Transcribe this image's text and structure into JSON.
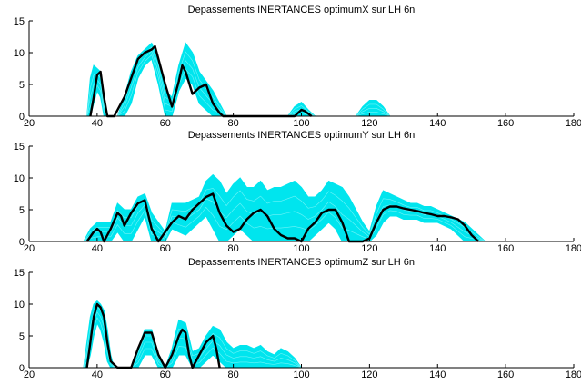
{
  "colors": {
    "band": "#00e5ee",
    "median": "#000000",
    "axis": "#000000",
    "background": "#ffffff"
  },
  "chart_data": [
    {
      "type": "line",
      "title": "Depassements INERTANCES optimumX sur LH 6n",
      "xlim": [
        20,
        180
      ],
      "ylim": [
        0,
        15
      ],
      "xticks": [
        "20",
        "40",
        "60",
        "80",
        "100",
        "120",
        "140",
        "160",
        "180"
      ],
      "yticks": [
        "0",
        "5",
        "10",
        "15"
      ],
      "grid": false,
      "series": [
        {
          "kind": "band",
          "x": [
            37,
            38,
            39,
            40,
            41,
            42,
            43,
            46,
            48,
            50,
            52,
            54,
            56,
            58,
            60,
            62,
            64,
            66,
            68,
            70,
            72,
            74,
            76,
            78,
            96,
            98,
            100,
            102,
            104,
            116,
            118,
            120,
            122,
            124,
            126
          ],
          "upper": [
            0,
            6,
            8,
            7.5,
            7,
            3,
            0,
            0,
            3,
            7,
            9.5,
            10.5,
            11.5,
            9,
            4,
            3,
            8,
            11.5,
            10,
            7,
            5.5,
            4,
            2,
            0,
            0,
            1.5,
            2.2,
            1,
            0,
            0,
            1.5,
            2.5,
            2.5,
            1.5,
            0
          ],
          "lower": [
            0,
            0,
            2,
            4,
            3,
            0,
            0,
            0,
            0,
            2,
            6,
            8,
            9,
            5,
            0,
            0,
            4,
            6,
            5,
            2,
            1,
            0,
            0,
            0,
            0,
            0,
            0,
            0,
            0,
            0,
            0,
            0,
            0,
            0,
            0
          ]
        },
        {
          "kind": "median",
          "x": [
            38,
            39,
            40,
            41,
            42,
            43,
            45,
            48,
            50,
            52,
            54,
            56,
            57,
            58,
            60,
            62,
            64,
            65,
            66,
            68,
            70,
            72,
            74,
            76,
            77,
            98,
            100,
            101,
            103
          ],
          "y": [
            0,
            3,
            6.5,
            7,
            3,
            0,
            0,
            3,
            6,
            9,
            10,
            10.5,
            11,
            9,
            5,
            1.5,
            5.5,
            8,
            7,
            3.5,
            4.5,
            5,
            2,
            0.5,
            0,
            0,
            1,
            0.8,
            0
          ]
        }
      ]
    },
    {
      "type": "line",
      "title": "Depassements INERTANCES optimumY sur LH 6n",
      "xlim": [
        20,
        180
      ],
      "ylim": [
        0,
        15
      ],
      "xticks": [
        "20",
        "40",
        "60",
        "80",
        "100",
        "120",
        "140",
        "160",
        "180"
      ],
      "yticks": [
        "0",
        "5",
        "10",
        "15"
      ],
      "grid": false,
      "series": [
        {
          "kind": "band",
          "x": [
            36,
            38,
            40,
            42,
            44,
            46,
            48,
            50,
            52,
            54,
            56,
            58,
            60,
            62,
            64,
            66,
            68,
            70,
            72,
            74,
            76,
            78,
            80,
            82,
            84,
            86,
            88,
            90,
            92,
            94,
            96,
            98,
            100,
            102,
            104,
            106,
            108,
            110,
            112,
            114,
            116,
            118,
            120,
            122,
            124,
            126,
            128,
            130,
            132,
            134,
            136,
            138,
            140,
            142,
            144,
            146,
            148,
            150,
            152,
            154
          ],
          "upper": [
            0,
            2,
            3,
            3,
            3,
            6,
            5,
            5,
            7,
            7.5,
            4.5,
            3,
            1.5,
            6,
            6,
            6,
            6.5,
            7,
            9.5,
            10.5,
            9.5,
            7.5,
            9,
            10,
            8.5,
            8.5,
            9.5,
            8,
            8.5,
            8.5,
            9,
            9.5,
            8.5,
            7,
            7,
            8,
            9.5,
            9,
            8.5,
            7,
            5,
            3,
            1.5,
            5.5,
            8,
            7.5,
            7,
            6.5,
            6,
            6,
            5.5,
            5.5,
            5,
            4.5,
            4,
            3.5,
            3,
            2,
            1,
            0
          ],
          "lower": [
            0,
            0,
            0,
            0,
            0,
            1.5,
            0,
            0,
            2,
            4,
            0,
            0,
            0,
            2,
            1.5,
            1,
            2,
            3,
            4,
            2,
            0,
            0,
            1,
            2,
            1,
            0,
            0,
            0,
            0,
            0,
            0,
            0,
            0,
            0,
            1,
            2,
            3,
            2,
            0,
            0,
            0,
            0,
            0,
            1,
            3,
            4,
            4,
            3.5,
            3.5,
            3.5,
            3,
            3,
            3,
            2.5,
            2,
            1,
            0,
            0,
            0,
            0
          ]
        },
        {
          "kind": "median",
          "x": [
            37,
            39,
            40,
            41,
            42,
            44,
            46,
            47,
            48,
            50,
            52,
            54,
            56,
            58,
            60,
            62,
            64,
            66,
            68,
            70,
            72,
            74,
            76,
            78,
            80,
            82,
            84,
            86,
            88,
            90,
            92,
            94,
            96,
            98,
            100,
            102,
            104,
            106,
            108,
            110,
            112,
            114,
            116,
            118,
            120,
            122,
            124,
            126,
            128,
            130,
            132,
            134,
            136,
            138,
            140,
            142,
            144,
            146,
            148,
            150,
            152
          ],
          "y": [
            0,
            1.5,
            2,
            1.5,
            0,
            2,
            4.5,
            4,
            2.5,
            4.5,
            6,
            6.5,
            2,
            0,
            1.5,
            3,
            4,
            3.5,
            5,
            6,
            7,
            7.5,
            4.5,
            2.5,
            1.5,
            2,
            3.5,
            4.5,
            5,
            4,
            2,
            1,
            0.5,
            0.5,
            0,
            2,
            3,
            4.5,
            5,
            5,
            3,
            0,
            0,
            0,
            0.5,
            3,
            5,
            5.5,
            5.5,
            5.2,
            5,
            4.8,
            4.5,
            4.3,
            4,
            4,
            3.8,
            3.5,
            2.5,
            1,
            0
          ]
        }
      ]
    },
    {
      "type": "line",
      "title": "Depassements INERTANCES optimumZ sur LH 6n",
      "xlim": [
        20,
        180
      ],
      "ylim": [
        0,
        15
      ],
      "xticks": [
        "20",
        "40",
        "60",
        "80",
        "100",
        "120",
        "140",
        "160",
        "180"
      ],
      "yticks": [
        "0",
        "5",
        "10",
        "15"
      ],
      "grid": false,
      "series": [
        {
          "kind": "band",
          "x": [
            36,
            37,
            38,
            39,
            40,
            41,
            42,
            43,
            44,
            45,
            47,
            50,
            52,
            54,
            56,
            58,
            60,
            62,
            64,
            66,
            68,
            70,
            72,
            74,
            76,
            78,
            80,
            82,
            84,
            86,
            88,
            90,
            92,
            94,
            96,
            98,
            100
          ],
          "upper": [
            0,
            4,
            8,
            10,
            10.5,
            10,
            9,
            6,
            2,
            0,
            0,
            0,
            3,
            6,
            6,
            2,
            0,
            3,
            7.5,
            7,
            2.5,
            3,
            5,
            6.5,
            6,
            4,
            3,
            3.5,
            3.5,
            3,
            3.5,
            2.5,
            2,
            3,
            2.5,
            1.5,
            0
          ],
          "lower": [
            0,
            0,
            2,
            5,
            7,
            6,
            4,
            1,
            0,
            0,
            0,
            0,
            0,
            2,
            2,
            0,
            0,
            0,
            2,
            2,
            0,
            0,
            1,
            2,
            1,
            0,
            0,
            0,
            0,
            0,
            0,
            0,
            0,
            0,
            0,
            0,
            0
          ]
        },
        {
          "kind": "median",
          "x": [
            37,
            38,
            39,
            40,
            41,
            42,
            43,
            44,
            46,
            48,
            50,
            52,
            54,
            56,
            58,
            60,
            62,
            64,
            65,
            66,
            67,
            68,
            70,
            72,
            74,
            75,
            76
          ],
          "y": [
            0,
            4,
            8,
            10,
            9.5,
            8,
            4,
            1,
            0,
            0,
            0,
            3,
            5.5,
            5.5,
            2,
            0,
            2,
            5,
            6,
            5.5,
            2,
            0,
            2,
            4,
            5,
            3,
            0
          ]
        }
      ]
    }
  ]
}
